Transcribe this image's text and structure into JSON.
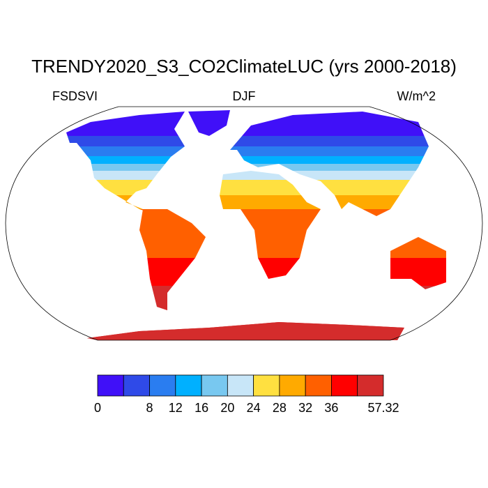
{
  "title": "TRENDY2020_S3_CO2ClimateLUC (yrs 2000-2018)",
  "left_label": "FSDSVI",
  "center_label": "DJF",
  "right_label": "W/m^2",
  "colorbar": {
    "colors": [
      "#4010f8",
      "#2f4ae8",
      "#2a7df0",
      "#00b0ff",
      "#78c8f0",
      "#c8e6f8",
      "#ffe040",
      "#ffaa00",
      "#ff6000",
      "#ff0000",
      "#d42c2c"
    ],
    "labels": [
      0,
      null,
      8,
      12,
      16,
      20,
      24,
      28,
      32,
      36,
      null,
      57.32
    ]
  }
}
